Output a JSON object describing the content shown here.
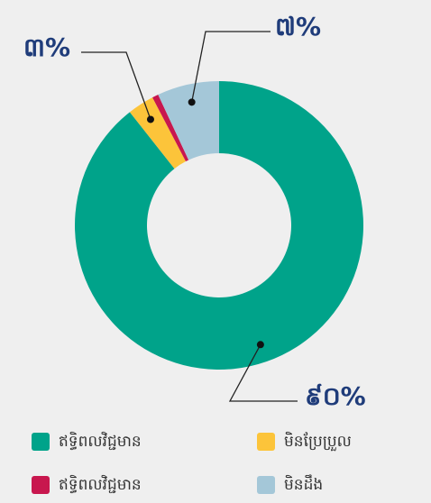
{
  "chart_data": {
    "type": "donut",
    "series": [
      {
        "name": "ឥទ្ធិពលវិជ្ជមាន",
        "color": "#00a38a",
        "value": 90,
        "value_label": "៩០%"
      },
      {
        "name": "មិនប្រែប្រួល",
        "color": "#fcc43a",
        "value": 3,
        "value_label": "៣%"
      },
      {
        "name": "ឥទ្ធិពលវិជ្ជមាន",
        "color": "#c8174e",
        "value": 0.7
      },
      {
        "name": "មិនដឹង",
        "color": "#a4c7d8",
        "value": 7,
        "value_label": "៧%"
      }
    ]
  }
}
